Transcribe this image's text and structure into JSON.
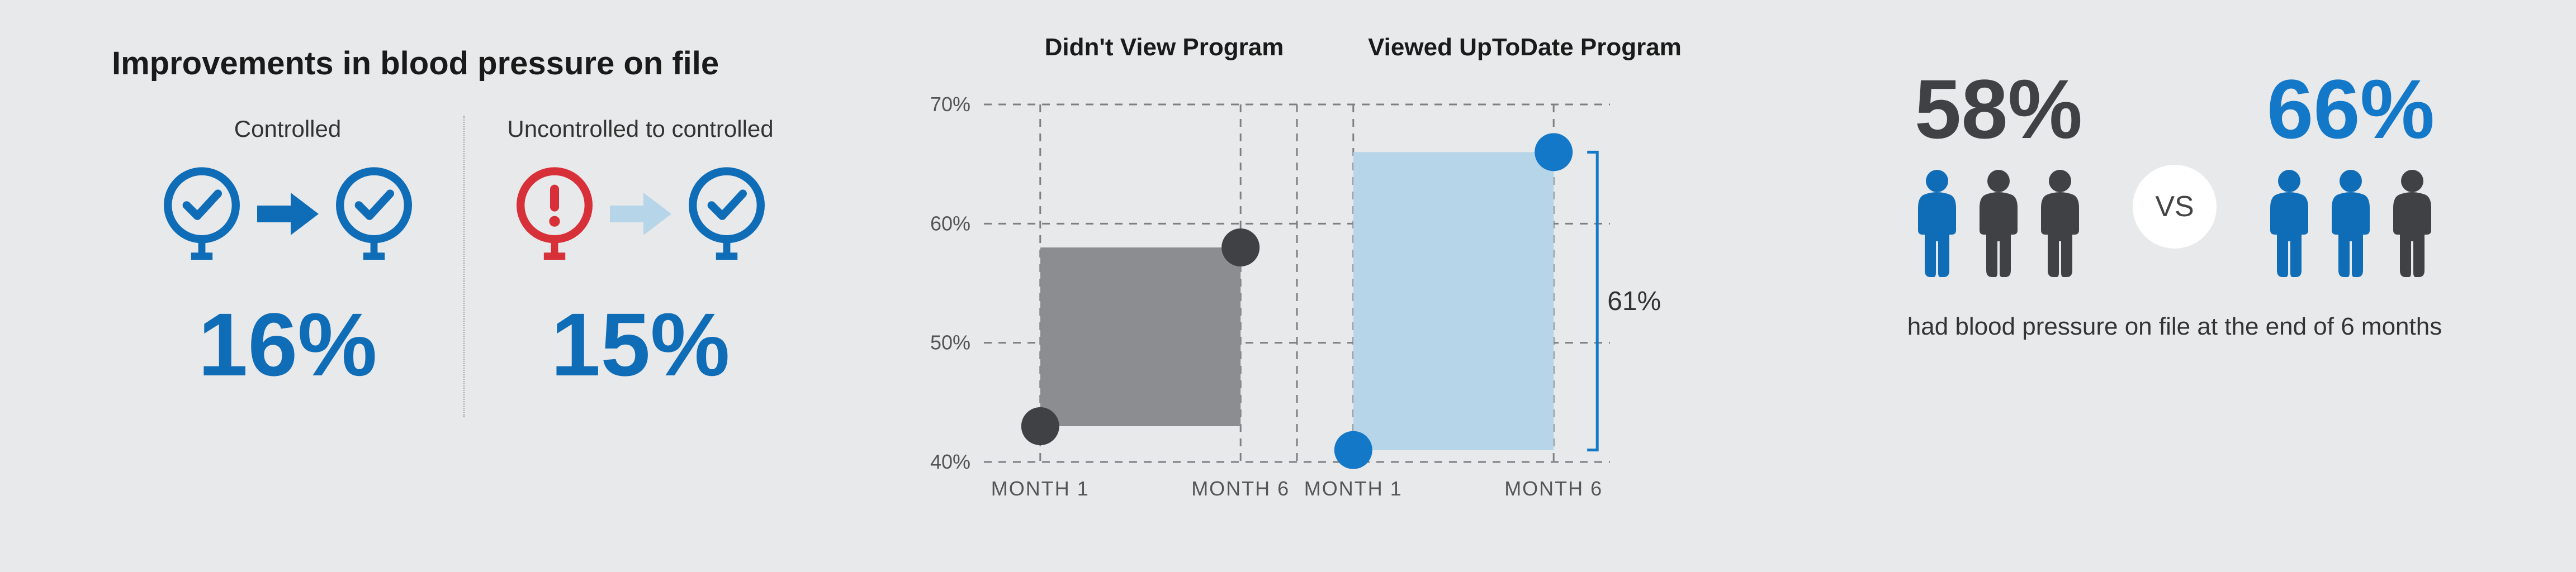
{
  "colors": {
    "bg": "#e8e9ea",
    "text_dark": "#1a1a1a",
    "text_mid": "#333333",
    "blue": "#0f6db8",
    "blue_light": "#b6d5e8",
    "red": "#d73038",
    "gray": "#8b8d90",
    "gray_dark": "#3f4144",
    "divider": "#c7c8c9"
  },
  "panel1": {
    "title": "Improvements in blood pressure on file",
    "controlled": {
      "label": "Controlled",
      "pct": "16%",
      "pct_color": "#0f6db8"
    },
    "uncontrolled": {
      "label": "Uncontrolled to controlled",
      "pct": "15%",
      "pct_color": "#0f6db8"
    }
  },
  "panel2": {
    "left_title": "Didn't View Program",
    "right_title": "Viewed UpToDate Program",
    "y_axis": {
      "min": 40,
      "max": 70,
      "ticks": [
        40,
        50,
        60,
        70
      ],
      "tick_labels": [
        "40%",
        "50%",
        "60%",
        "70%"
      ]
    },
    "x_labels": [
      "MONTH 1",
      "MONTH 6",
      "MONTH 1",
      "MONTH 6"
    ],
    "callout": "61%",
    "left_series": {
      "fill": "#8b8d90",
      "dot_color": "#3f4144",
      "values": [
        43,
        58
      ]
    },
    "right_series": {
      "fill": "#b6d5e8",
      "dot_color": "#1478c8",
      "values": [
        41,
        66
      ]
    },
    "grid_color": "#7d7f82",
    "label_fontsize": 36
  },
  "panel3": {
    "left": {
      "pct": "58%",
      "pct_color": "#3f4144",
      "people_colors": [
        "#0f6db8",
        "#3f4144",
        "#3f4144"
      ]
    },
    "vs": "VS",
    "right": {
      "pct": "66%",
      "pct_color": "#1478c8",
      "people_colors": [
        "#0f6db8",
        "#0f6db8",
        "#3f4144"
      ]
    },
    "caption": "had blood pressure on file at the end of 6 months"
  }
}
